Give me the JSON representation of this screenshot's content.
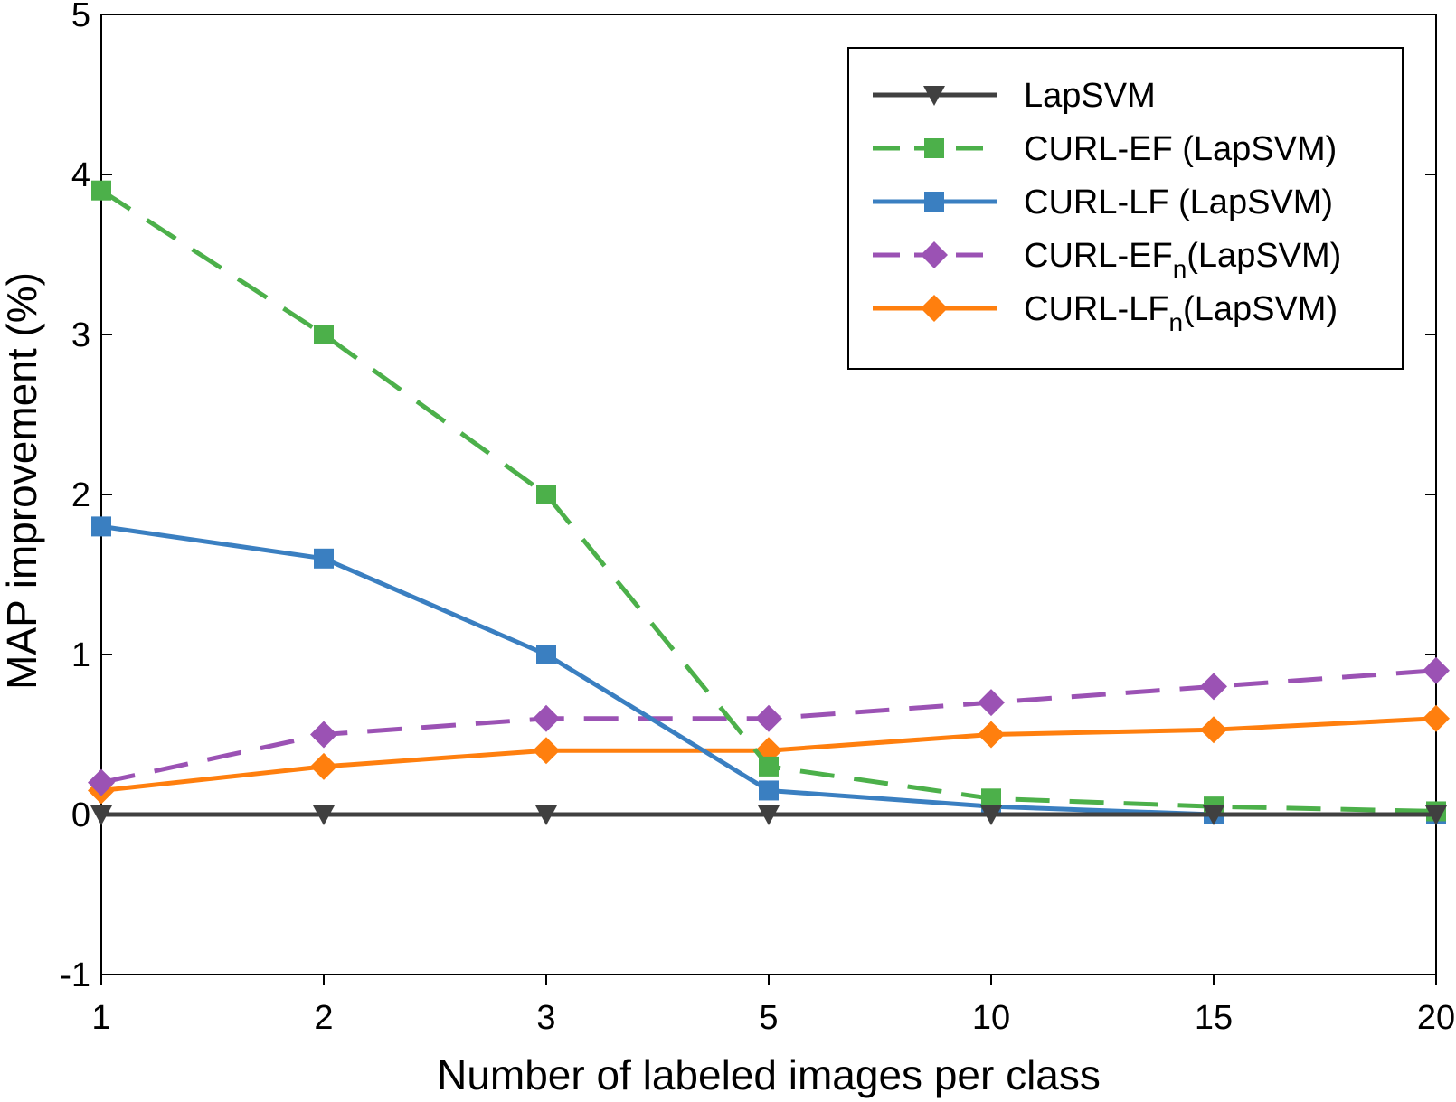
{
  "chart_data": {
    "type": "line",
    "title": "",
    "xlabel": "Number of labeled images per class",
    "ylabel": "MAP improvement (%)",
    "categories": [
      "1",
      "2",
      "3",
      "5",
      "10",
      "15",
      "20"
    ],
    "ylim": [
      -1,
      5
    ],
    "yticks": [
      "-1",
      "0",
      "1",
      "2",
      "3",
      "4",
      "5"
    ],
    "grid": false,
    "legend_position": "top-right",
    "series": [
      {
        "name": "LapSVM",
        "label_main": "LapSVM",
        "label_sub": "",
        "label_tail": "",
        "color": "#404040",
        "dash": "solid",
        "marker": "triangle-down",
        "values": [
          0,
          0,
          0,
          0,
          0,
          0,
          0
        ]
      },
      {
        "name": "CURL-EF (LapSVM)",
        "label_main": "CURL-EF (LapSVM)",
        "label_sub": "",
        "label_tail": "",
        "color": "#4cb04a",
        "dash": "dashed",
        "marker": "square",
        "values": [
          3.9,
          3.0,
          2.0,
          0.3,
          0.1,
          0.05,
          0.02
        ]
      },
      {
        "name": "CURL-LF (LapSVM)",
        "label_main": "CURL-LF (LapSVM)",
        "label_sub": "",
        "label_tail": "",
        "color": "#3a7fc1",
        "dash": "solid",
        "marker": "square",
        "values": [
          1.8,
          1.6,
          1.0,
          0.15,
          0.05,
          0.0,
          0.0
        ]
      },
      {
        "name": "CURL-EFn(LapSVM)",
        "label_main": "CURL-EF",
        "label_sub": "n",
        "label_tail": "(LapSVM)",
        "color": "#9b52b4",
        "dash": "dashed",
        "marker": "diamond",
        "values": [
          0.2,
          0.5,
          0.6,
          0.6,
          0.7,
          0.8,
          0.9
        ]
      },
      {
        "name": "CURL-LFn(LapSVM)",
        "label_main": "CURL-LF",
        "label_sub": "n",
        "label_tail": "(LapSVM)",
        "color": "#ff7f0e",
        "dash": "solid",
        "marker": "diamond",
        "values": [
          0.15,
          0.3,
          0.4,
          0.4,
          0.5,
          0.53,
          0.6
        ]
      }
    ]
  }
}
